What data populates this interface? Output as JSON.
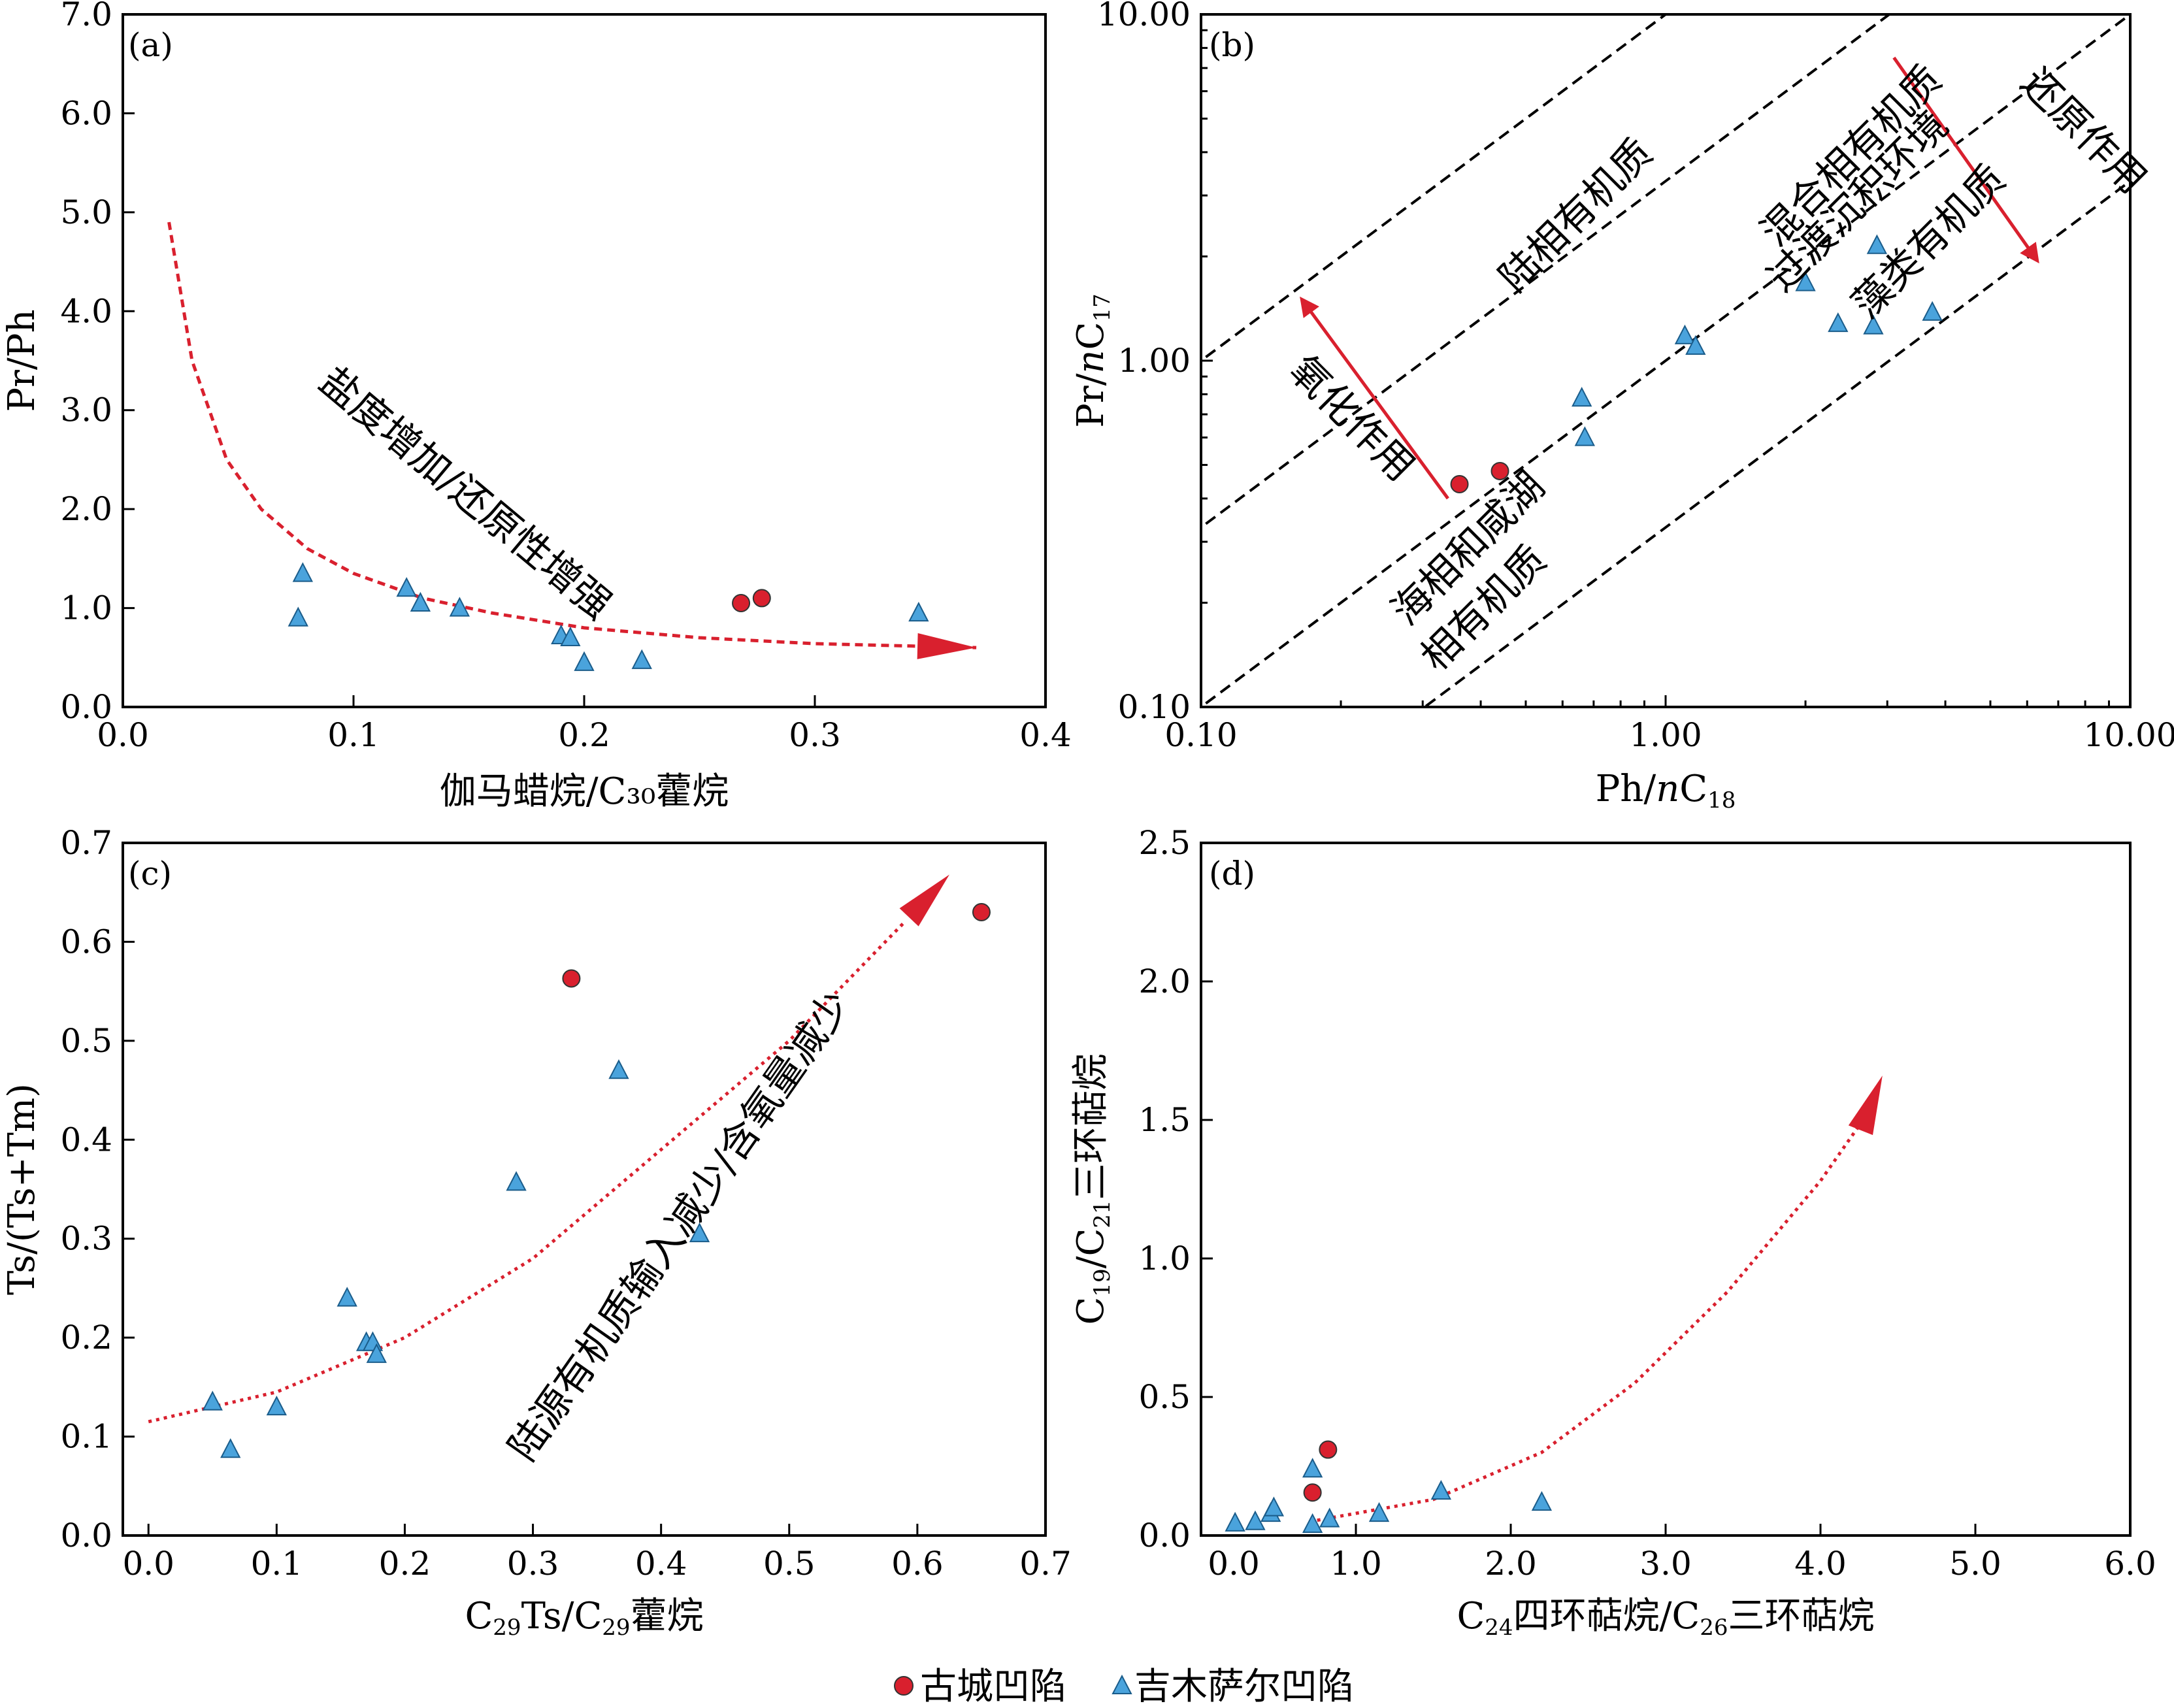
{
  "colors": {
    "gucheng": "#d9202e",
    "jimusaer": "#4aa3dc",
    "trend": "#d9202e",
    "axis": "#000000"
  },
  "legend": {
    "items": [
      {
        "key": "gucheng",
        "marker": "circle",
        "label": "古城凹陷"
      },
      {
        "key": "jimusaer",
        "marker": "triangle",
        "label": "吉木萨尔凹陷"
      }
    ]
  },
  "chart_data": [
    {
      "panel": "a",
      "panel_label": "(a)",
      "type": "scatter",
      "xlabel": "伽马蜡烷/C₃₀藿烷",
      "ylabel": "Pr/Ph",
      "xlim": [
        0.0,
        0.4
      ],
      "ylim": [
        0.0,
        7.0
      ],
      "x_ticks": [
        0.0,
        0.1,
        0.2,
        0.3,
        0.4
      ],
      "x_tick_labels": [
        "0.0",
        "0.1",
        "0.2",
        "0.3",
        "0.4"
      ],
      "y_ticks": [
        0,
        1,
        2,
        3,
        4,
        5,
        6,
        7
      ],
      "y_tick_labels": [
        "0.0",
        "1.0",
        "2.0",
        "3.0",
        "4.0",
        "5.0",
        "6.0",
        "7.0"
      ],
      "series": [
        {
          "key": "gucheng",
          "points": [
            [
              0.268,
              1.05
            ],
            [
              0.277,
              1.1
            ]
          ]
        },
        {
          "key": "jimusaer",
          "points": [
            [
              0.076,
              0.9
            ],
            [
              0.078,
              1.35
            ],
            [
              0.123,
              1.2
            ],
            [
              0.129,
              1.05
            ],
            [
              0.146,
              1.0
            ],
            [
              0.19,
              0.72
            ],
            [
              0.194,
              0.7
            ],
            [
              0.2,
              0.45
            ],
            [
              0.225,
              0.47
            ],
            [
              0.345,
              0.95
            ]
          ]
        }
      ],
      "trend": {
        "style": "dashed",
        "points": [
          [
            0.02,
            4.9
          ],
          [
            0.03,
            3.5
          ],
          [
            0.045,
            2.5
          ],
          [
            0.06,
            2.0
          ],
          [
            0.08,
            1.6
          ],
          [
            0.1,
            1.35
          ],
          [
            0.13,
            1.1
          ],
          [
            0.16,
            0.95
          ],
          [
            0.2,
            0.8
          ],
          [
            0.25,
            0.7
          ],
          [
            0.3,
            0.64
          ],
          [
            0.37,
            0.6
          ]
        ]
      },
      "annotations": [
        {
          "text": "盐度增加/还原性增强"
        }
      ]
    },
    {
      "panel": "b",
      "panel_label": "(b)",
      "type": "scatter",
      "xscale": "log",
      "yscale": "log",
      "xlabel": "Ph/nC₁₈",
      "ylabel": "Pr/nC₁₇",
      "xlim": [
        0.1,
        10.0
      ],
      "ylim": [
        0.1,
        10.0
      ],
      "x_ticks": [
        0.1,
        1.0,
        10.0
      ],
      "x_tick_labels": [
        "0.10",
        "1.00",
        "10.00"
      ],
      "y_ticks": [
        0.1,
        1.0,
        10.0
      ],
      "y_tick_labels": [
        "0.10",
        "1.00",
        "10.00"
      ],
      "series": [
        {
          "key": "gucheng",
          "points": [
            [
              0.36,
              0.44
            ],
            [
              0.44,
              0.48
            ]
          ]
        },
        {
          "key": "jimusaer",
          "points": [
            [
              0.66,
              0.78
            ],
            [
              0.67,
              0.6
            ],
            [
              1.1,
              1.18
            ],
            [
              1.16,
              1.1
            ],
            [
              2.0,
              1.68
            ],
            [
              2.35,
              1.28
            ],
            [
              2.8,
              1.26
            ],
            [
              2.85,
              2.15
            ],
            [
              3.75,
              1.38
            ]
          ]
        }
      ],
      "region_lines": [
        {
          "style": "dashed",
          "ratio": 10
        },
        {
          "style": "dashed",
          "ratio": 3.3
        },
        {
          "style": "dashed",
          "ratio": 1
        },
        {
          "style": "dashed",
          "ratio": 0.33
        }
      ],
      "arrows": [
        {
          "from": [
            0.34,
            0.4
          ],
          "to": [
            0.165,
            1.5
          ]
        },
        {
          "from": [
            3.1,
            7.5
          ],
          "to": [
            6.3,
            1.95
          ]
        }
      ],
      "annotations": [
        {
          "text": "陆相有机质"
        },
        {
          "text": "混合相有机质"
        },
        {
          "text": "过渡沉积环境"
        },
        {
          "text": "藻类有机质"
        },
        {
          "text": "还原作用"
        },
        {
          "text": "氧化作用"
        },
        {
          "text": "海相和咸湖"
        },
        {
          "text": "相有机质"
        }
      ]
    },
    {
      "panel": "c",
      "panel_label": "(c)",
      "type": "scatter",
      "xlabel": "C₂₉Ts/C₂₉藿烷",
      "ylabel": "Ts/(Ts+Tm)",
      "xlim": [
        -0.02,
        0.7
      ],
      "ylim": [
        0.0,
        0.7
      ],
      "x_ticks": [
        0.0,
        0.1,
        0.2,
        0.3,
        0.4,
        0.5,
        0.6,
        0.7
      ],
      "x_tick_labels": [
        "0.0",
        "0.1",
        "0.2",
        "0.3",
        "0.4",
        "0.5",
        "0.6",
        "0.7"
      ],
      "y_ticks": [
        0.0,
        0.1,
        0.2,
        0.3,
        0.4,
        0.5,
        0.6,
        0.7
      ],
      "y_tick_labels": [
        "0.0",
        "0.1",
        "0.2",
        "0.3",
        "0.4",
        "0.5",
        "0.6",
        "0.7"
      ],
      "series": [
        {
          "key": "gucheng",
          "points": [
            [
              0.33,
              0.563
            ],
            [
              0.65,
              0.63
            ]
          ]
        },
        {
          "key": "jimusaer",
          "points": [
            [
              0.05,
              0.135
            ],
            [
              0.064,
              0.087
            ],
            [
              0.1,
              0.13
            ],
            [
              0.155,
              0.24
            ],
            [
              0.17,
              0.195
            ],
            [
              0.175,
              0.195
            ],
            [
              0.178,
              0.183
            ],
            [
              0.287,
              0.357
            ],
            [
              0.367,
              0.47
            ],
            [
              0.43,
              0.305
            ]
          ]
        }
      ],
      "trend": {
        "style": "dotted",
        "points": [
          [
            0.0,
            0.115
          ],
          [
            0.1,
            0.145
          ],
          [
            0.2,
            0.2
          ],
          [
            0.3,
            0.28
          ],
          [
            0.4,
            0.39
          ],
          [
            0.5,
            0.5
          ],
          [
            0.59,
            0.62
          ]
        ]
      },
      "arrow_head": {
        "from": [
          0.59,
          0.62
        ],
        "to": [
          0.625,
          0.668
        ]
      },
      "annotations": [
        {
          "text": "陆源有机质输入减少/含氧量减少"
        }
      ]
    },
    {
      "panel": "d",
      "panel_label": "(d)",
      "type": "scatter",
      "xlabel": "C₂₄四环萜烷/C₂₆三环萜烷",
      "ylabel": "C₁₉/C₂₁三环萜烷",
      "xlim": [
        0.0,
        6.0
      ],
      "ylim": [
        0.0,
        2.5
      ],
      "x_ticks": [
        1.0,
        2.0,
        3.0,
        4.0,
        5.0,
        6.0
      ],
      "x_tick_labels": [
        "1.0",
        "2.0",
        "3.0",
        "4.0",
        "5.0",
        "6.0"
      ],
      "y_ticks": [
        0.0,
        0.5,
        1.0,
        1.5,
        2.0,
        2.5
      ],
      "y_tick_labels": [
        "0.0",
        "0.5",
        "1.0",
        "1.5",
        "2.0",
        "2.5"
      ],
      "x_origin_label": "0.0",
      "series": [
        {
          "key": "gucheng",
          "points": [
            [
              0.72,
              0.155
            ],
            [
              0.82,
              0.31
            ]
          ]
        },
        {
          "key": "jimusaer",
          "points": [
            [
              0.22,
              0.045
            ],
            [
              0.35,
              0.05
            ],
            [
              0.45,
              0.08
            ],
            [
              0.47,
              0.1
            ],
            [
              0.72,
              0.04
            ],
            [
              0.72,
              0.24
            ],
            [
              0.83,
              0.06
            ],
            [
              1.15,
              0.08
            ],
            [
              1.55,
              0.16
            ],
            [
              2.2,
              0.12
            ]
          ]
        }
      ],
      "trend": {
        "style": "dotted",
        "points": [
          [
            0.7,
            0.05
          ],
          [
            1.5,
            0.13
          ],
          [
            2.2,
            0.3
          ],
          [
            2.8,
            0.55
          ],
          [
            3.4,
            0.88
          ],
          [
            4.0,
            1.28
          ],
          [
            4.3,
            1.52
          ]
        ]
      },
      "arrow_head": {
        "from": [
          4.3,
          1.52
        ],
        "to": [
          4.4,
          1.66
        ]
      },
      "annotations": []
    }
  ]
}
